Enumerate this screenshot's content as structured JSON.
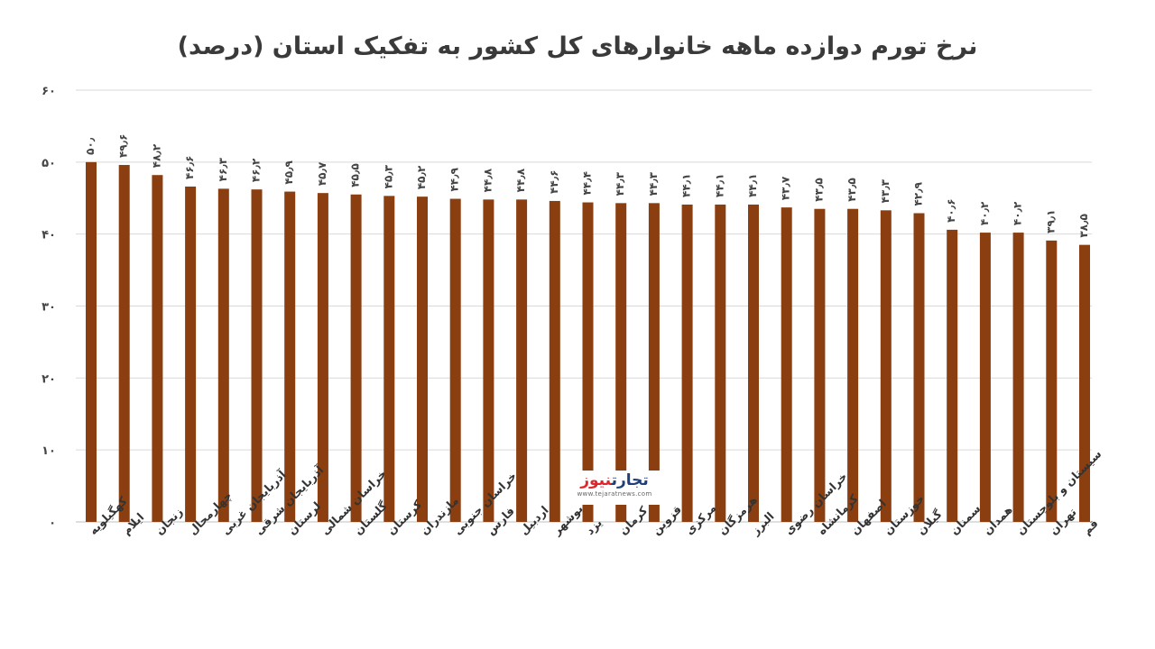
{
  "chart_data": {
    "type": "bar",
    "title": "نرخ تورم دوازده ماهه خانوارهای کل کشور به تفکیک استان (درصد)",
    "color": "#8B3E10",
    "ylim": [
      0,
      60
    ],
    "yticks": [
      "۰",
      "۱۰",
      "۲۰",
      "۳۰",
      "۴۰",
      "۵۰",
      "۶۰"
    ],
    "ytick_values": [
      0,
      10,
      20,
      30,
      40,
      50,
      60
    ],
    "grid": true,
    "categories": [
      "کهگیلویه",
      "ایلام",
      "زنجان",
      "چهارمحال",
      "آذربایجان غربی",
      "آذربایجان شرقی",
      "لرستان",
      "خراسان شمالی",
      "گلستان",
      "کرستان",
      "مازندران",
      "خراسان جنوبی",
      "فارس",
      "اردبیل",
      "بوشهر",
      "یزد",
      "کرمان",
      "قزوین",
      "مرکزی",
      "هرمزگان",
      "البرز",
      "خراسان رضوی",
      "کرمانشاه",
      "اصفهان",
      "خوزستان",
      "گیلان",
      "سمنان",
      "همدان",
      "سیستان و بلوچستان",
      "تهران",
      "قم"
    ],
    "values": [
      50.0,
      49.6,
      48.2,
      46.6,
      46.3,
      46.2,
      45.9,
      45.7,
      45.5,
      45.3,
      45.2,
      44.9,
      44.8,
      44.8,
      44.6,
      44.4,
      44.3,
      44.3,
      44.1,
      44.1,
      44.1,
      43.7,
      43.5,
      43.5,
      43.3,
      42.9,
      40.6,
      40.2,
      40.2,
      39.1,
      38.5
    ],
    "data_labels": [
      "۵۰٫",
      "۴۹٫۶",
      "۴۸٫۲",
      "۴۶٫۶",
      "۴۶٫۳",
      "۴۶٫۲",
      "۴۵٫۹",
      "۴۵٫۷",
      "۴۵٫۵",
      "۴۵٫۳",
      "۴۵٫۲",
      "۴۴٫۹",
      "۴۴٫۸",
      "۴۴٫۸",
      "۴۴٫۶",
      "۴۴٫۴",
      "۴۴٫۳",
      "۴۴٫۳",
      "۴۴٫۱",
      "۴۴٫۱",
      "۴۴٫۱",
      "۴۳٫۷",
      "۴۳٫۵",
      "۴۳٫۵",
      "۴۳٫۳",
      "۴۲٫۹",
      "۴۰٫۶",
      "۴۰٫۲",
      "۴۰٫۲",
      "۳۹٫۱",
      "۳۸٫۵"
    ]
  },
  "watermark": {
    "logo_main": "تجارت",
    "logo_accent": "نیوز",
    "url": "www.tejaratnews.com"
  }
}
